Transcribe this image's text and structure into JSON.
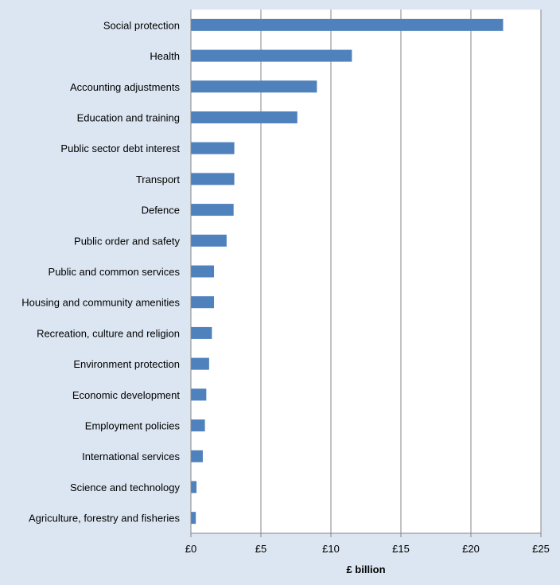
{
  "chart_data": {
    "type": "bar",
    "orientation": "horizontal",
    "categories": [
      "Social protection",
      "Health",
      "Accounting adjustments",
      "Education and training",
      "Public sector debt interest",
      "Transport",
      "Defence",
      "Public order and safety",
      "Public and common services",
      "Housing and community amenities",
      "Recreation, culture and religion",
      "Environment protection",
      "Economic development",
      "Employment policies",
      "International services",
      "Science and technology",
      "Agriculture, forestry and fisheries"
    ],
    "values": [
      22.3,
      11.5,
      9.0,
      7.6,
      3.1,
      3.1,
      3.05,
      2.55,
      1.65,
      1.65,
      1.5,
      1.3,
      1.1,
      1.0,
      0.85,
      0.4,
      0.35
    ],
    "title": "",
    "xlabel": "£ billion",
    "ylabel": "",
    "xlim": [
      0,
      25
    ],
    "x_ticks": [
      0,
      5,
      10,
      15,
      20,
      25
    ],
    "x_tick_labels": [
      "£0",
      "£5",
      "£10",
      "£15",
      "£20",
      "£25"
    ],
    "grid": "vertical",
    "legend": "none",
    "colors": {
      "bar": "#4f81bd",
      "page_background": "#dce6f2",
      "plot_background": "#ffffff",
      "gridline": "#868686",
      "text": "#000000"
    }
  }
}
